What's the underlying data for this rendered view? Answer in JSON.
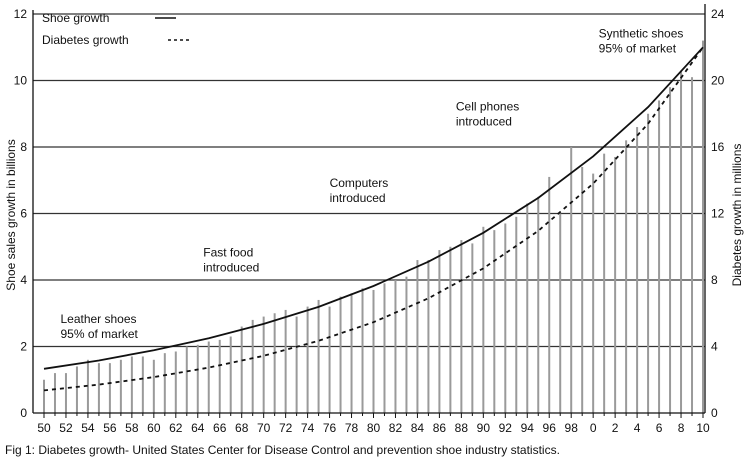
{
  "caption": "Fig 1: Diabetes growth- United States Center for Disease Control and prevention shoe industry statistics.",
  "chart_data": {
    "type": "line",
    "title": "",
    "xlabel": "",
    "ylabel": "Shoe sales growth in billions",
    "ylabel_right": "Diabetes growth in millions",
    "xlim": [
      1950,
      2010
    ],
    "ylim": [
      0,
      12
    ],
    "ylim_right": [
      0,
      24
    ],
    "grid": true,
    "x_ticks": [
      1950,
      1952,
      1954,
      1956,
      1958,
      1960,
      1962,
      1964,
      1966,
      1968,
      1970,
      1972,
      1974,
      1976,
      1978,
      1980,
      1982,
      1984,
      1986,
      1988,
      1990,
      1992,
      1994,
      1996,
      1998,
      2000,
      2002,
      2004,
      2006,
      2008,
      2010
    ],
    "x_tick_labels": [
      "50",
      "52",
      "54",
      "56",
      "58",
      "60",
      "62",
      "64",
      "66",
      "68",
      "70",
      "72",
      "74",
      "76",
      "78",
      "80",
      "82",
      "84",
      "86",
      "88",
      "90",
      "92",
      "94",
      "96",
      "98",
      "0",
      "2",
      "4",
      "6",
      "8",
      "10"
    ],
    "y_ticks_left": [
      "0",
      "2",
      "4",
      "6",
      "8",
      "10",
      "12"
    ],
    "y_ticks_right": [
      "0",
      "4",
      "8",
      "12",
      "16",
      "20",
      "24"
    ],
    "legend_position": "top-left",
    "series": [
      {
        "name": "Shoe growth",
        "style": "solid",
        "axis": "left",
        "x": [
          1950,
          1955,
          1960,
          1965,
          1970,
          1975,
          1980,
          1985,
          1990,
          1995,
          2000,
          2005,
          2010
        ],
        "values": [
          1.33,
          1.58,
          1.89,
          2.25,
          2.68,
          3.19,
          3.82,
          4.55,
          5.42,
          6.47,
          7.72,
          9.2,
          11.0
        ]
      },
      {
        "name": "Diabetes growth",
        "style": "dashed",
        "axis": "right",
        "x": [
          1950,
          1955,
          1960,
          1965,
          1970,
          1975,
          1980,
          1985,
          1990,
          1995,
          2000,
          2005,
          2010
        ],
        "values": [
          1.36,
          1.71,
          2.16,
          2.73,
          3.44,
          4.34,
          5.46,
          6.9,
          8.7,
          10.96,
          13.8,
          17.4,
          22.0
        ]
      }
    ],
    "bars": {
      "x_start": 1950,
      "color": "#9a9a9a",
      "values": [
        1.0,
        1.2,
        1.2,
        1.4,
        1.6,
        1.5,
        1.5,
        1.6,
        1.7,
        1.7,
        1.6,
        1.8,
        1.85,
        2.0,
        2.05,
        2.15,
        2.2,
        2.3,
        2.6,
        2.8,
        2.9,
        3.0,
        3.1,
        2.9,
        3.2,
        3.4,
        3.2,
        3.5,
        3.6,
        3.75,
        3.7,
        3.9,
        4.0,
        4.1,
        4.6,
        4.6,
        4.9,
        5.0,
        5.2,
        5.1,
        5.6,
        5.5,
        5.7,
        5.9,
        6.3,
        6.5,
        7.1,
        6.0,
        8.0,
        7.4,
        7.2,
        7.8,
        7.7,
        8.2,
        8.6,
        9.0,
        9.4,
        9.8,
        10.3,
        10.1,
        11.2
      ]
    },
    "annotations": [
      {
        "lines": [
          "Leather shoes",
          "95% of market"
        ],
        "x": 1951.5,
        "y": 2.7
      },
      {
        "lines": [
          "Fast food",
          "introduced"
        ],
        "x": 1964.5,
        "y": 4.7
      },
      {
        "lines": [
          "Computers",
          "introduced"
        ],
        "x": 1976,
        "y": 6.8
      },
      {
        "lines": [
          "Cell phones",
          "introduced"
        ],
        "x": 1987.5,
        "y": 9.1
      },
      {
        "lines": [
          "Synthetic shoes",
          "95% of market"
        ],
        "x": 2000.5,
        "y": 11.3
      }
    ]
  }
}
